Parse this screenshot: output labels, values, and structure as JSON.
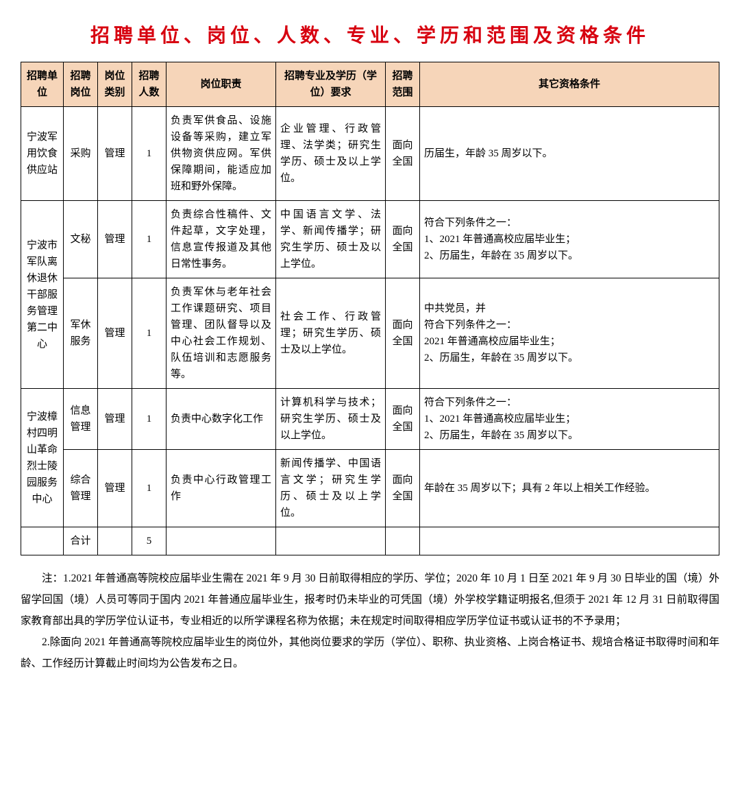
{
  "title": "招聘单位、岗位、人数、专业、学历和范围及资格条件",
  "colors": {
    "title": "#d7000f",
    "header_bg": "#f6d5b9",
    "border": "#000000",
    "text": "#000000",
    "background": "#ffffff"
  },
  "fonts": {
    "title_family": "SimHei",
    "title_size_pt": 21,
    "body_family": "SimSun",
    "body_size_pt": 11
  },
  "table": {
    "columns": [
      {
        "key": "unit",
        "label": "招聘单位"
      },
      {
        "key": "post",
        "label": "招聘岗位"
      },
      {
        "key": "cat",
        "label": "岗位类别"
      },
      {
        "key": "num",
        "label": "招聘人数"
      },
      {
        "key": "duty",
        "label": "岗位职责"
      },
      {
        "key": "req",
        "label": "招聘专业及学历（学位）要求"
      },
      {
        "key": "scope",
        "label": "招聘范围"
      },
      {
        "key": "other",
        "label": "其它资格条件"
      }
    ],
    "groups": [
      {
        "unit": "宁波军用饮食供应站",
        "rows": [
          {
            "post": "采购",
            "cat": "管理",
            "num": "1",
            "duty": "负责军供食品、设施设备等采购，建立军供物资供应网。军供保障期间，能适应加班和野外保障。",
            "req": "企业管理、行政管理、法学类；研究生学历、硕士及以上学位。",
            "scope": "面向全国",
            "other": "历届生，年龄 35 周岁以下。"
          }
        ]
      },
      {
        "unit": "宁波市军队离休退休干部服务管理第二中心",
        "rows": [
          {
            "post": "文秘",
            "cat": "管理",
            "num": "1",
            "duty": "负责综合性稿件、文件起草，文字处理，信息宣传报道及其他日常性事务。",
            "req": "中国语言文学、法学、新闻传播学；研究生学历、硕士及以上学位。",
            "scope": "面向全国",
            "other": "符合下列条件之一：\n1、2021 年普通高校应届毕业生；\n2、历届生，年龄在 35 周岁以下。"
          },
          {
            "post": "军休服务",
            "cat": "管理",
            "num": "1",
            "duty": "负责军休与老年社会工作课题研究、项目管理、团队督导以及中心社会工作规划、队伍培训和志愿服务等。",
            "req": "社会工作、行政管理；研究生学历、硕士及以上学位。",
            "scope": "面向全国",
            "other": "中共党员，并\n符合下列条件之一：\n2021 年普通高校应届毕业生；\n2、历届生，年龄在 35 周岁以下。"
          }
        ]
      },
      {
        "unit": "宁波樟村四明山革命烈士陵园服务中心",
        "rows": [
          {
            "post": "信息管理",
            "cat": "管理",
            "num": "1",
            "duty": "负责中心数字化工作",
            "req": "计算机科学与技术；研究生学历、硕士及以上学位。",
            "scope": "面向全国",
            "other": "符合下列条件之一：\n1、2021 年普通高校应届毕业生；\n2、历届生，年龄在 35 周岁以下。"
          },
          {
            "post": "综合管理",
            "cat": "管理",
            "num": "1",
            "duty": "负责中心行政管理工作",
            "req": "新闻传播学、中国语言文学；研究生学历、硕士及以上学位。",
            "scope": "面向全国",
            "other": "年龄在 35 周岁以下；具有 2 年以上相关工作经验。"
          }
        ]
      }
    ],
    "total": {
      "label": "合计",
      "num": "5"
    }
  },
  "notes": [
    "注：1.2021 年普通高等院校应届毕业生需在 2021 年 9 月 30 日前取得相应的学历、学位；2020 年 10 月 1 日至 2021 年 9 月 30 日毕业的国（境）外留学回国（境）人员可等同于国内 2021 年普通应届毕业生，报考时仍未毕业的可凭国（境）外学校学籍证明报名,但须于 2021 年 12 月 31 日前取得国家教育部出具的学历学位认证书，专业相近的以所学课程名称为依据；未在规定时间取得相应学历学位证书或认证书的不予录用；",
    "2.除面向 2021 年普通高等院校应届毕业生的岗位外，其他岗位要求的学历（学位）、职称、执业资格、上岗合格证书、规培合格证书取得时间和年龄、工作经历计算截止时间均为公告发布之日。"
  ]
}
